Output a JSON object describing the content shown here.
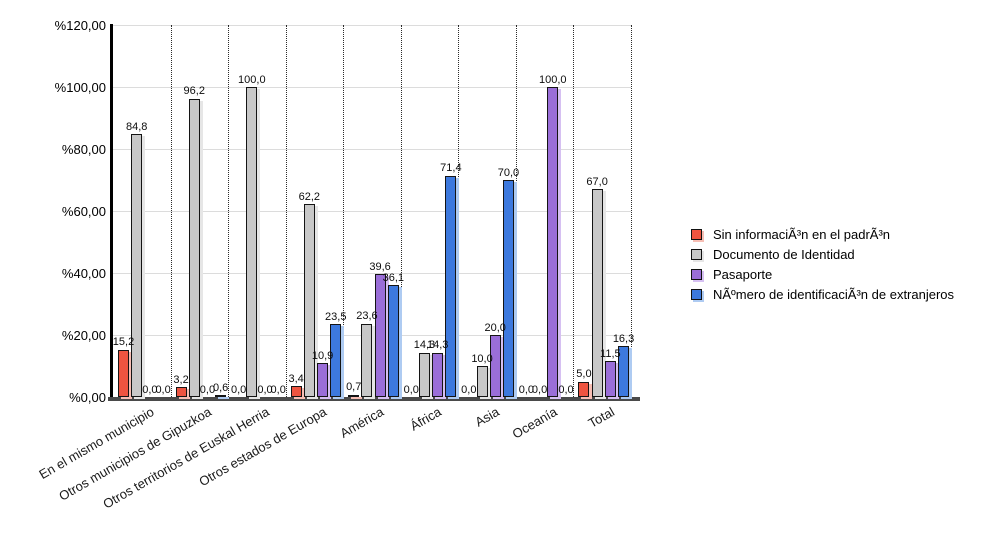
{
  "chart_data": {
    "type": "bar",
    "title": "",
    "categories": [
      "En el mismo municipio",
      "Otros municipios de Gipuzkoa",
      "Otros territorios de Euskal Herria",
      "Otros estados de Europa",
      "América",
      "África",
      "Asia",
      "Oceanía",
      "Total"
    ],
    "series": [
      {
        "name": "Sin informaciÃ³n en el padrÃ³n",
        "color": "#ee5440",
        "shadow_color": "#f7beb4",
        "values": [
          15.2,
          3.2,
          0.0,
          3.4,
          0.7,
          0.0,
          0.0,
          0.0,
          5.0
        ],
        "labels": [
          "15,2",
          "3,2",
          "0,0",
          "3,4",
          "0,7",
          "0,0",
          "0,0",
          "0,0",
          "5,0"
        ]
      },
      {
        "name": "Documento de Identidad",
        "color": "#c8c8c8",
        "shadow_color": "#e6e6e6",
        "values": [
          84.8,
          96.2,
          100.0,
          62.2,
          23.6,
          14.3,
          10.0,
          0.0,
          67.0
        ],
        "labels": [
          "84,8",
          "96,2",
          "100,0",
          "62,2",
          "23,6",
          "14,3",
          "10,0",
          "0,0",
          "67,0"
        ]
      },
      {
        "name": "Pasaporte",
        "color": "#9a6ed8",
        "shadow_color": "#d6c0f2",
        "values": [
          0.0,
          0.0,
          0.0,
          10.9,
          39.6,
          14.3,
          20.0,
          100.0,
          11.5
        ],
        "labels": [
          "0,0",
          "0,0",
          "0,0",
          "10,9",
          "39,6",
          "14,3",
          "20,0",
          "100,0",
          "11,5"
        ]
      },
      {
        "name": "NÃºmero de identificaciÃ³n de extranjeros",
        "color": "#3d79de",
        "shadow_color": "#aecbf2",
        "values": [
          0.0,
          0.6,
          0.0,
          23.5,
          36.1,
          71.4,
          70.0,
          0.0,
          16.3
        ],
        "labels": [
          "0,0",
          "0,6",
          "0,0",
          "23,5",
          "36,1",
          "71,4",
          "70,0",
          "0,0",
          "16,3"
        ]
      }
    ],
    "y_ticks": [
      "%0,00",
      "%20,00",
      "%40,00",
      "%60,00",
      "%80,00",
      "%100,00",
      "%120,00"
    ],
    "ylim": [
      0,
      120
    ],
    "xlabel": "",
    "ylabel": "",
    "grid": true,
    "legend_position": "right"
  }
}
